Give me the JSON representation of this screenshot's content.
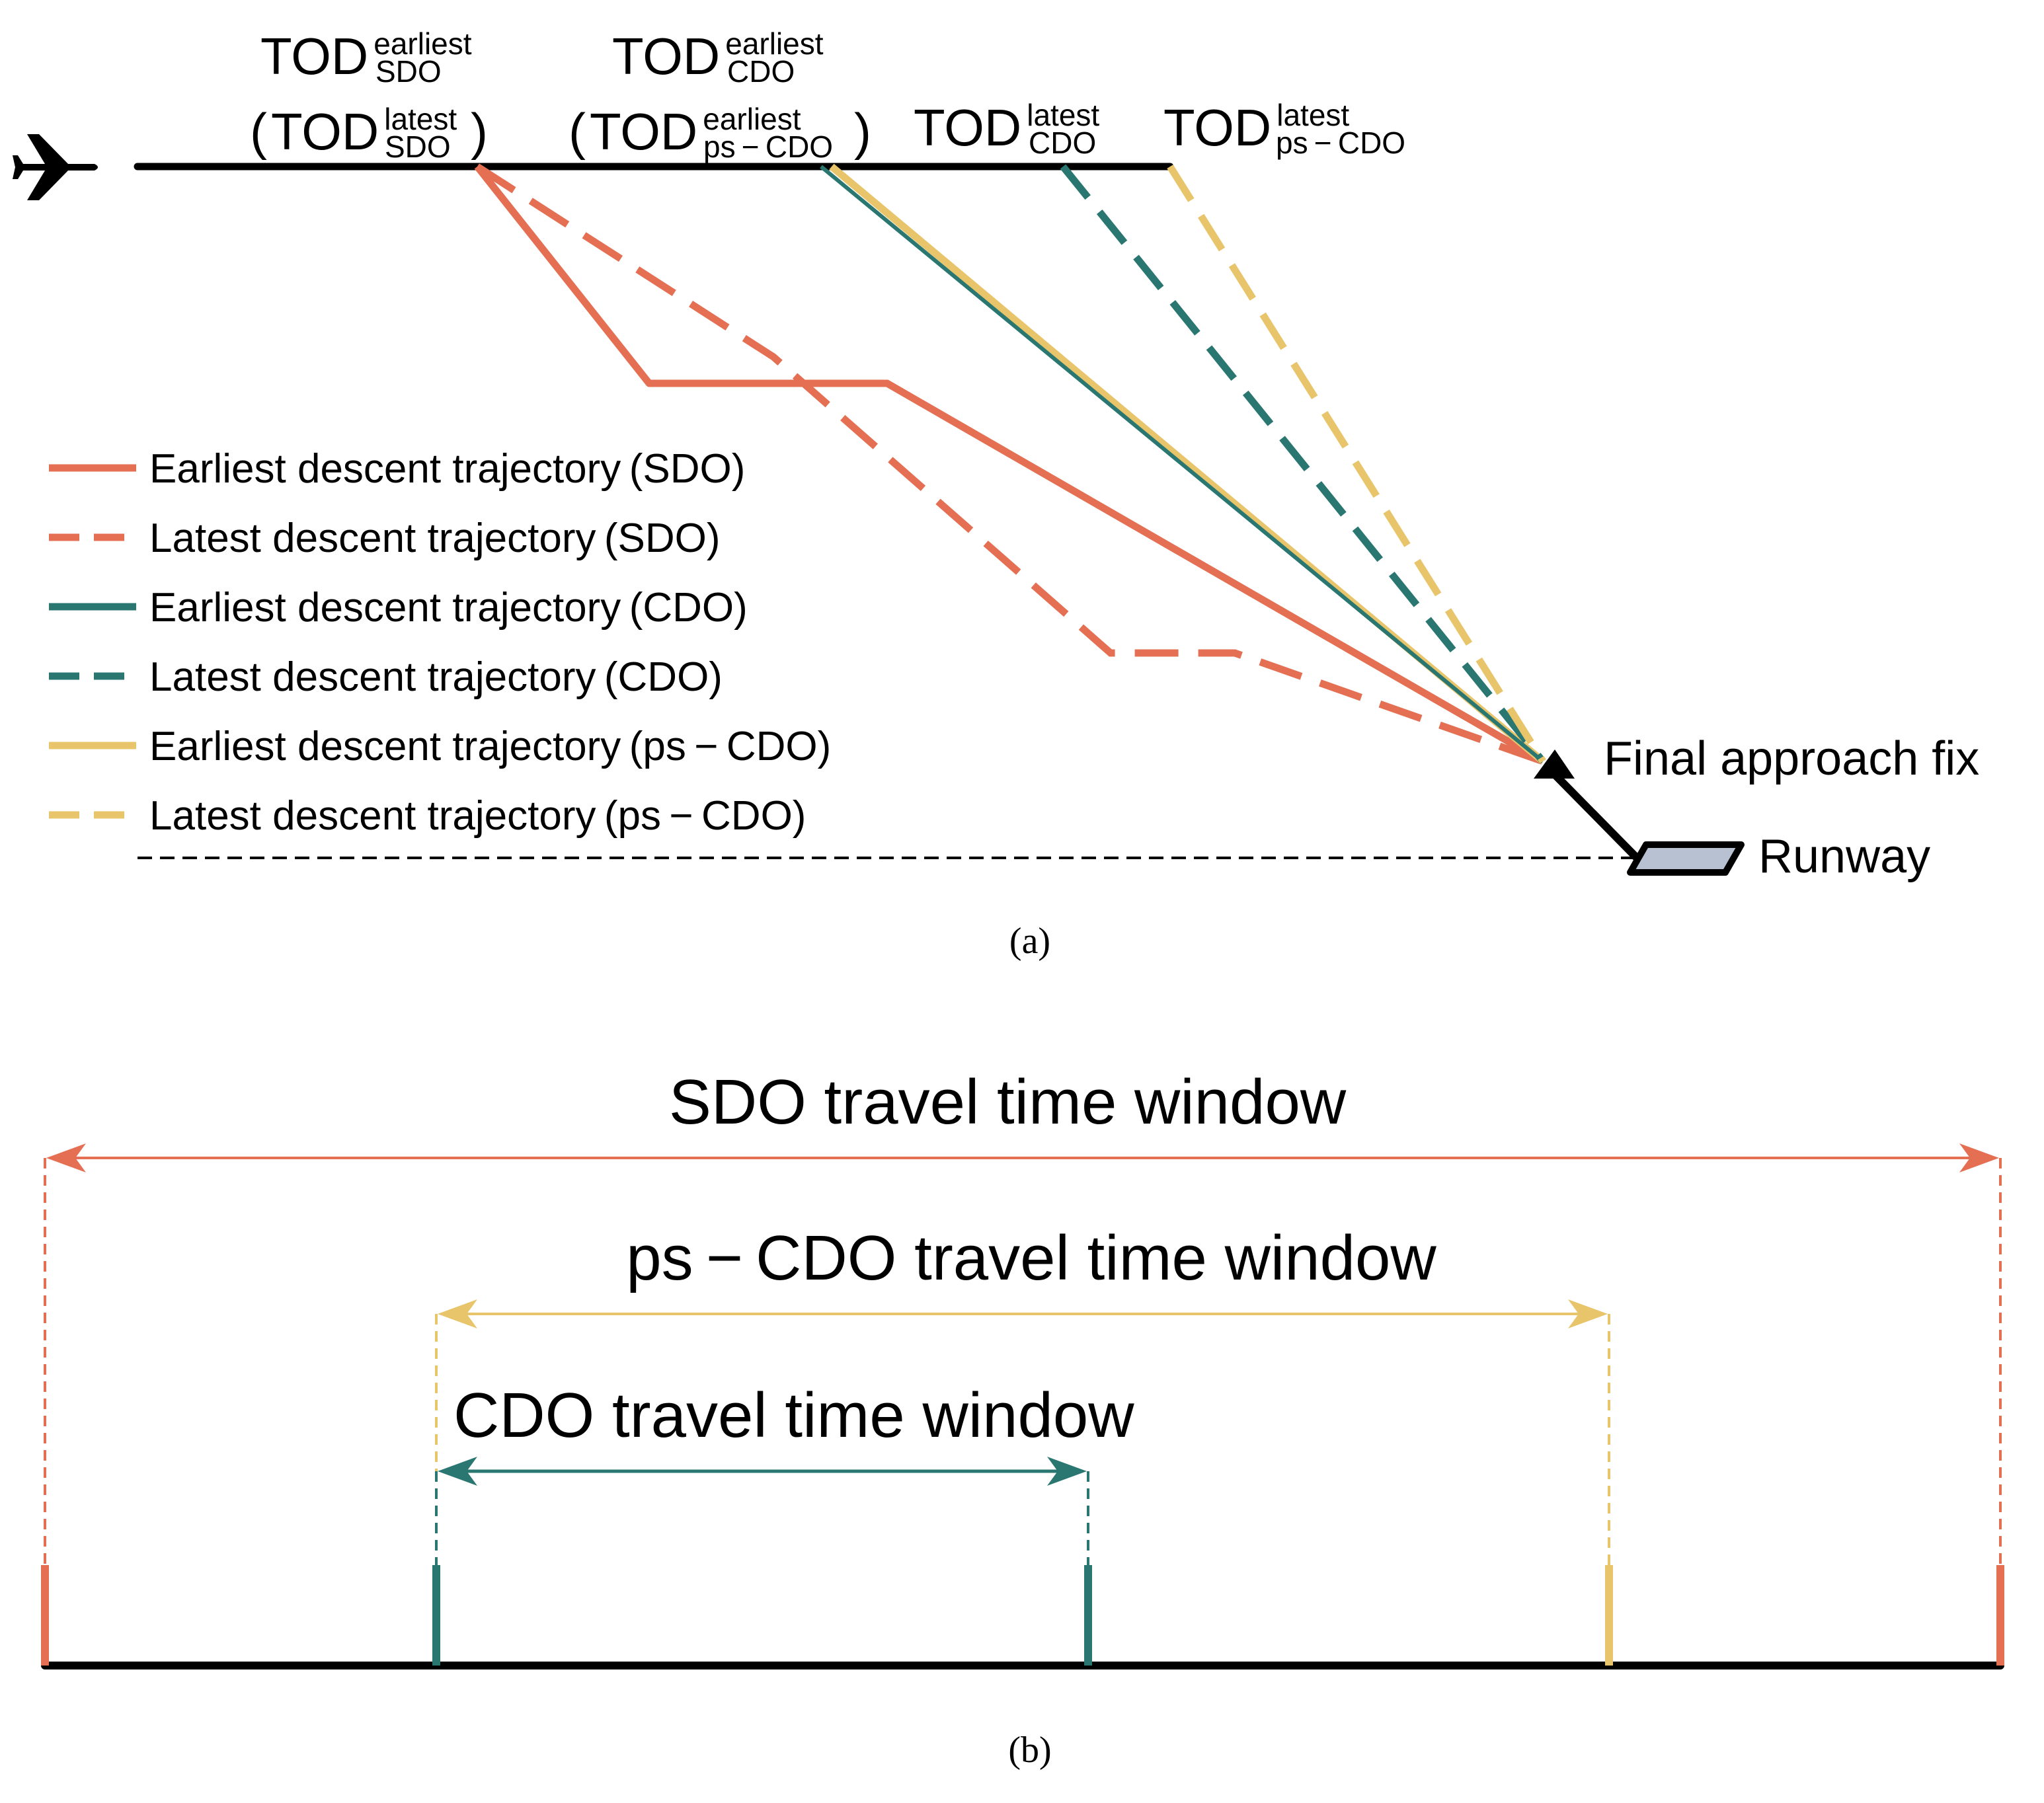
{
  "colors": {
    "sdo": "#E46F52",
    "cdo": "#2A7772",
    "ps_cdo": "#E8C46A",
    "ink": "#000000",
    "runway_fill": "#B7C1D2"
  },
  "panel_a": {
    "caption": "(a)",
    "tod_labels": {
      "sdo_earliest": {
        "main": "TOD",
        "sup": "earliest",
        "sub": "SDO"
      },
      "sdo_latest": {
        "open": "(",
        "main": "TOD",
        "sup": "latest",
        "sub": "SDO",
        "close": ")"
      },
      "cdo_earliest": {
        "main": "TOD",
        "sup": "earliest",
        "sub": "CDO"
      },
      "ps_cdo_earliest": {
        "open": "(",
        "main": "TOD",
        "sup": "earliest",
        "sub": "ps − CDO",
        "close": ")"
      },
      "cdo_latest": {
        "main": "TOD",
        "sup": "latest",
        "sub": "CDO"
      },
      "ps_cdo_latest": {
        "main": "TOD",
        "sup": "latest",
        "sub": "ps − CDO"
      }
    },
    "legend": [
      {
        "label": "Earliest descent trajectory (SDO)",
        "color_key": "sdo",
        "dashed": false
      },
      {
        "label": "Latest descent trajectory (SDO)",
        "color_key": "sdo",
        "dashed": true
      },
      {
        "label": "Earliest descent trajectory (CDO)",
        "color_key": "cdo",
        "dashed": false
      },
      {
        "label": "Latest descent trajectory (CDO)",
        "color_key": "cdo",
        "dashed": true
      },
      {
        "label": "Earliest descent trajectory (ps − CDO)",
        "color_key": "ps_cdo",
        "dashed": false
      },
      {
        "label": "Latest descent trajectory (ps − CDO)",
        "color_key": "ps_cdo",
        "dashed": true
      }
    ],
    "final_approach_fix_label": "Final approach fix",
    "runway_label": "Runway",
    "icons": {
      "aircraft": "airplane-icon",
      "fix": "triangle-marker",
      "runway": "runway-parallelogram"
    }
  },
  "panel_b": {
    "caption": "(b)",
    "sdo_window_label": "SDO travel time window",
    "ps_cdo_window_label": "ps − CDO travel time window",
    "cdo_window_label": "CDO travel time window"
  }
}
